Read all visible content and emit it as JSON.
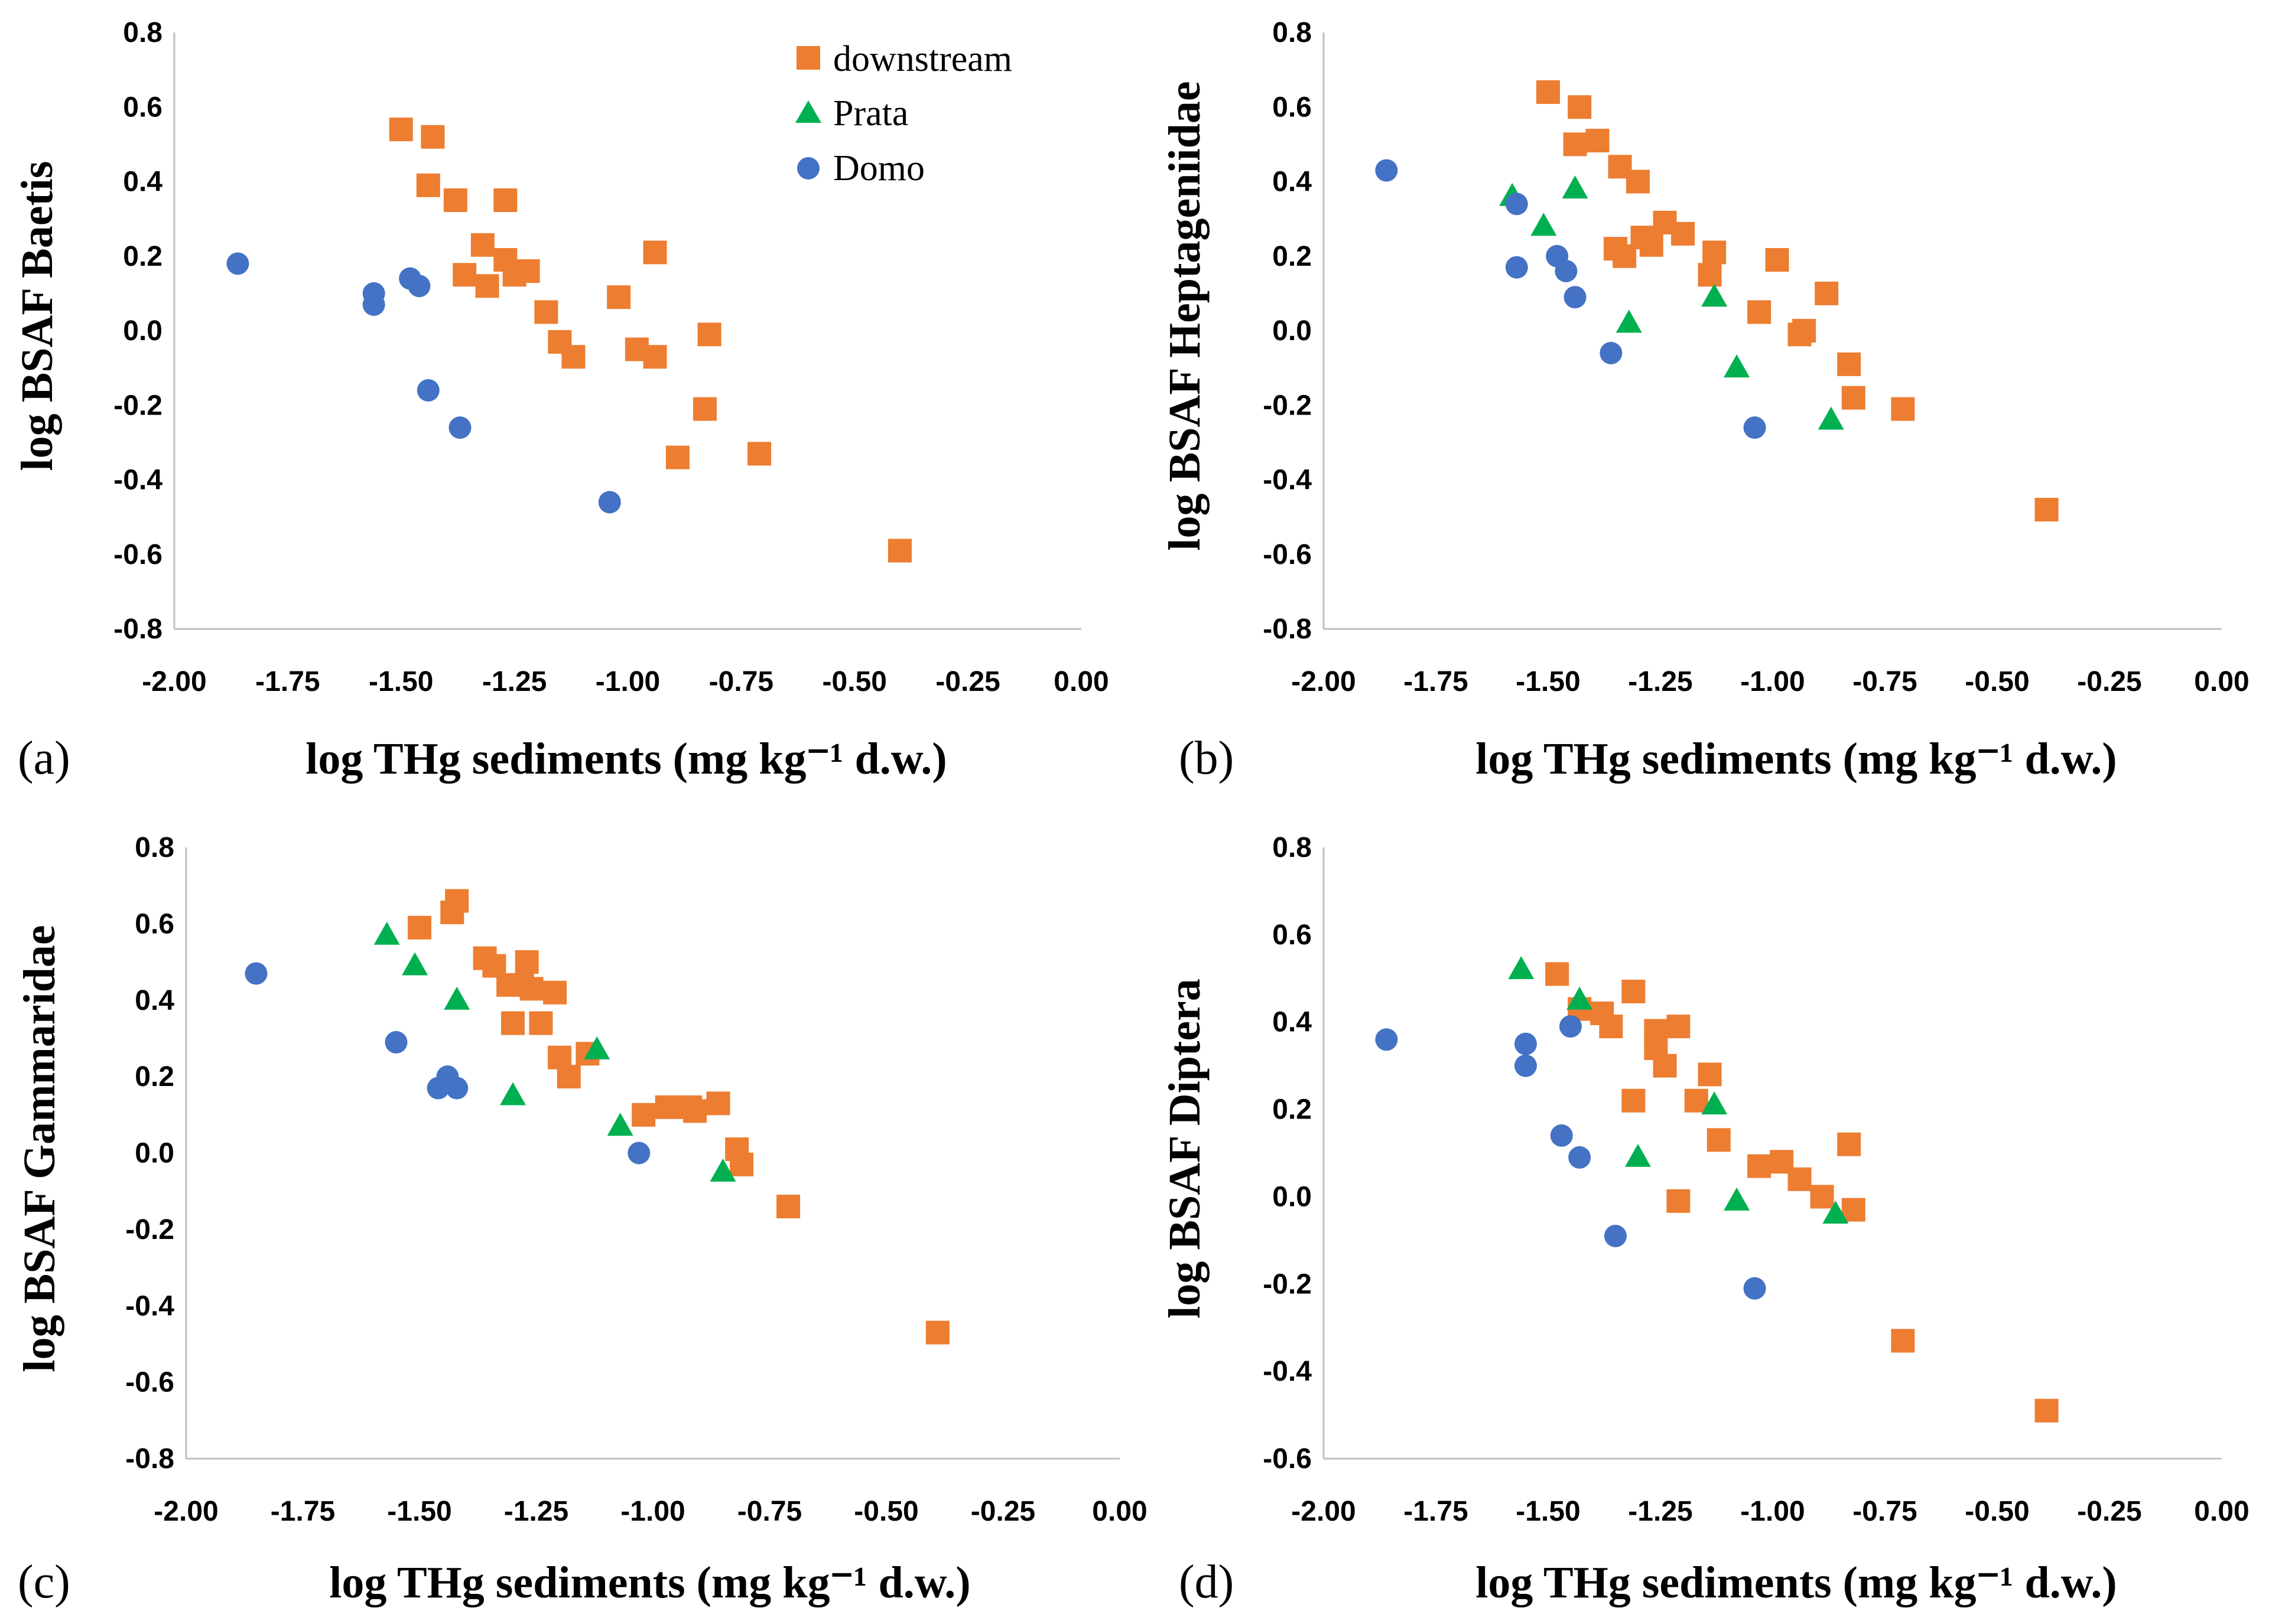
{
  "legend": [
    {
      "name": "downstream",
      "color": "#ed7d31",
      "marker": "square"
    },
    {
      "name": "Prata",
      "color": "#00b050",
      "marker": "triangle"
    },
    {
      "name": "Domo",
      "color": "#4472c4",
      "marker": "circle"
    }
  ],
  "chart_data": [
    {
      "type": "scatter",
      "panel": "(a)",
      "xlabel": "log THg sediments (mg kg⁻¹ d.w.)",
      "ylabel": "log BSAF Baetis",
      "xlim": [
        -2.0,
        0.0
      ],
      "ylim": [
        -0.8,
        0.8
      ],
      "xticks": [
        "-2.00",
        "-1.75",
        "-1.50",
        "-1.25",
        "-1.00",
        "-0.75",
        "-0.50",
        "-0.25",
        "0.00"
      ],
      "yticks": [
        "0.8",
        "0.6",
        "0.4",
        "0.2",
        "0.0",
        "-0.2",
        "-0.4",
        "-0.6",
        "-0.8"
      ],
      "series": [
        {
          "name": "downstream",
          "points": [
            [
              -1.5,
              0.54
            ],
            [
              -1.43,
              0.52
            ],
            [
              -1.44,
              0.39
            ],
            [
              -1.38,
              0.35
            ],
            [
              -1.27,
              0.35
            ],
            [
              -1.32,
              0.23
            ],
            [
              -1.36,
              0.15
            ],
            [
              -1.27,
              0.19
            ],
            [
              -1.25,
              0.15
            ],
            [
              -1.22,
              0.16
            ],
            [
              -1.31,
              0.12
            ],
            [
              -1.18,
              0.05
            ],
            [
              -1.15,
              -0.03
            ],
            [
              -1.12,
              -0.07
            ],
            [
              -1.02,
              0.09
            ],
            [
              -0.94,
              0.21
            ],
            [
              -0.98,
              -0.05
            ],
            [
              -0.94,
              -0.07
            ],
            [
              -0.82,
              -0.01
            ],
            [
              -0.83,
              -0.21
            ],
            [
              -0.89,
              -0.34
            ],
            [
              -0.71,
              -0.33
            ],
            [
              -0.4,
              -0.59
            ]
          ]
        },
        {
          "name": "Domo",
          "points": [
            [
              -1.86,
              0.18
            ],
            [
              -1.56,
              0.1
            ],
            [
              -1.56,
              0.07
            ],
            [
              -1.48,
              0.14
            ],
            [
              -1.46,
              0.12
            ],
            [
              -1.44,
              -0.16
            ],
            [
              -1.37,
              -0.26
            ],
            [
              -1.04,
              -0.46
            ]
          ]
        }
      ]
    },
    {
      "type": "scatter",
      "panel": "(b)",
      "xlabel": "log THg sediments (mg kg⁻¹ d.w.)",
      "ylabel": "log BSAF Heptageniidae",
      "xlim": [
        -2.0,
        0.0
      ],
      "ylim": [
        -0.8,
        0.8
      ],
      "xticks": [
        "-2.00",
        "-1.75",
        "-1.50",
        "-1.25",
        "-1.00",
        "-0.75",
        "-0.50",
        "-0.25",
        "0.00"
      ],
      "yticks": [
        "0.8",
        "0.6",
        "0.4",
        "0.2",
        "0.0",
        "-0.2",
        "-0.4",
        "-0.6",
        "-0.8"
      ],
      "series": [
        {
          "name": "downstream",
          "points": [
            [
              -1.5,
              0.64
            ],
            [
              -1.43,
              0.6
            ],
            [
              -1.44,
              0.5
            ],
            [
              -1.39,
              0.51
            ],
            [
              -1.34,
              0.44
            ],
            [
              -1.3,
              0.4
            ],
            [
              -1.35,
              0.22
            ],
            [
              -1.33,
              0.2
            ],
            [
              -1.29,
              0.25
            ],
            [
              -1.27,
              0.23
            ],
            [
              -1.24,
              0.29
            ],
            [
              -1.2,
              0.26
            ],
            [
              -1.14,
              0.15
            ],
            [
              -1.13,
              0.21
            ],
            [
              -0.99,
              0.19
            ],
            [
              -1.03,
              0.05
            ],
            [
              -0.94,
              -0.01
            ],
            [
              -0.93,
              0.0
            ],
            [
              -0.88,
              0.1
            ],
            [
              -0.83,
              -0.09
            ],
            [
              -0.82,
              -0.18
            ],
            [
              -0.71,
              -0.21
            ],
            [
              -0.39,
              -0.48
            ]
          ]
        },
        {
          "name": "Prata",
          "points": [
            [
              -1.58,
              0.36
            ],
            [
              -1.51,
              0.28
            ],
            [
              -1.44,
              0.38
            ],
            [
              -1.32,
              0.02
            ],
            [
              -1.13,
              0.09
            ],
            [
              -1.08,
              -0.1
            ],
            [
              -0.87,
              -0.24
            ]
          ]
        },
        {
          "name": "Domo",
          "points": [
            [
              -1.86,
              0.43
            ],
            [
              -1.57,
              0.34
            ],
            [
              -1.57,
              0.17
            ],
            [
              -1.48,
              0.2
            ],
            [
              -1.46,
              0.16
            ],
            [
              -1.44,
              0.09
            ],
            [
              -1.36,
              -0.06
            ],
            [
              -1.04,
              -0.26
            ]
          ]
        }
      ]
    },
    {
      "type": "scatter",
      "panel": "(c)",
      "xlabel": "log THg sediments (mg kg⁻¹ d.w.)",
      "ylabel": "log BSAF Gammaridae",
      "xlim": [
        -2.0,
        0.0
      ],
      "ylim": [
        -0.8,
        0.8
      ],
      "xticks": [
        "-2.00",
        "-1.75",
        "-1.50",
        "-1.25",
        "-1.00",
        "-0.75",
        "-0.50",
        "-0.25",
        "0.00"
      ],
      "yticks": [
        "0.8",
        "0.6",
        "0.4",
        "0.2",
        "0.0",
        "-0.2",
        "-0.4",
        "-0.6",
        "-0.8"
      ],
      "series": [
        {
          "name": "downstream",
          "points": [
            [
              -1.5,
              0.59
            ],
            [
              -1.43,
              0.63
            ],
            [
              -1.42,
              0.66
            ],
            [
              -1.36,
              0.51
            ],
            [
              -1.34,
              0.49
            ],
            [
              -1.31,
              0.44
            ],
            [
              -1.28,
              0.44
            ],
            [
              -1.27,
              0.5
            ],
            [
              -1.26,
              0.43
            ],
            [
              -1.21,
              0.42
            ],
            [
              -1.3,
              0.34
            ],
            [
              -1.24,
              0.34
            ],
            [
              -1.2,
              0.25
            ],
            [
              -1.18,
              0.2
            ],
            [
              -1.14,
              0.26
            ],
            [
              -1.02,
              0.1
            ],
            [
              -0.97,
              0.12
            ],
            [
              -0.92,
              0.12
            ],
            [
              -0.91,
              0.11
            ],
            [
              -0.86,
              0.13
            ],
            [
              -0.82,
              0.01
            ],
            [
              -0.81,
              -0.03
            ],
            [
              -0.71,
              -0.14
            ],
            [
              -0.39,
              -0.47
            ]
          ]
        },
        {
          "name": "Prata",
          "points": [
            [
              -1.57,
              0.57
            ],
            [
              -1.51,
              0.49
            ],
            [
              -1.42,
              0.4
            ],
            [
              -1.3,
              0.15
            ],
            [
              -1.12,
              0.27
            ],
            [
              -1.07,
              0.07
            ],
            [
              -0.85,
              -0.05
            ]
          ]
        },
        {
          "name": "Domo",
          "points": [
            [
              -1.85,
              0.47
            ],
            [
              -1.55,
              0.29
            ],
            [
              -1.46,
              0.17
            ],
            [
              -1.44,
              0.2
            ],
            [
              -1.42,
              0.17
            ],
            [
              -1.03,
              0.0
            ]
          ]
        }
      ]
    },
    {
      "type": "scatter",
      "panel": "(d)",
      "xlabel": "log THg sediments (mg kg⁻¹ d.w.)",
      "ylabel": "log BSAF Diptera",
      "xlim": [
        -2.0,
        0.0
      ],
      "ylim": [
        -0.6,
        0.8
      ],
      "xticks": [
        "-2.00",
        "-1.75",
        "-1.50",
        "-1.25",
        "-1.00",
        "-0.75",
        "-0.50",
        "-0.25",
        "0.00"
      ],
      "yticks": [
        "0.8",
        "0.6",
        "0.4",
        "0.2",
        "0.0",
        "-0.2",
        "-0.4",
        "-0.6"
      ],
      "series": [
        {
          "name": "downstream",
          "points": [
            [
              -1.48,
              0.51
            ],
            [
              -1.43,
              0.43
            ],
            [
              -1.38,
              0.42
            ],
            [
              -1.36,
              0.39
            ],
            [
              -1.31,
              0.47
            ],
            [
              -1.26,
              0.38
            ],
            [
              -1.26,
              0.34
            ],
            [
              -1.24,
              0.3
            ],
            [
              -1.21,
              0.39
            ],
            [
              -1.17,
              0.22
            ],
            [
              -1.14,
              0.28
            ],
            [
              -1.12,
              0.13
            ],
            [
              -1.31,
              0.22
            ],
            [
              -1.21,
              -0.01
            ],
            [
              -1.03,
              0.07
            ],
            [
              -0.98,
              0.08
            ],
            [
              -0.94,
              0.04
            ],
            [
              -0.89,
              0.0
            ],
            [
              -0.83,
              0.12
            ],
            [
              -0.82,
              -0.03
            ],
            [
              -0.71,
              -0.33
            ],
            [
              -0.39,
              -0.49
            ]
          ]
        },
        {
          "name": "Prata",
          "points": [
            [
              -1.56,
              0.52
            ],
            [
              -1.43,
              0.45
            ],
            [
              -1.3,
              0.09
            ],
            [
              -1.13,
              0.21
            ],
            [
              -1.08,
              -0.01
            ],
            [
              -0.86,
              -0.04
            ]
          ]
        },
        {
          "name": "Domo",
          "points": [
            [
              -1.86,
              0.36
            ],
            [
              -1.55,
              0.35
            ],
            [
              -1.55,
              0.3
            ],
            [
              -1.45,
              0.39
            ],
            [
              -1.47,
              0.14
            ],
            [
              -1.43,
              0.09
            ],
            [
              -1.35,
              -0.09
            ],
            [
              -1.04,
              -0.21
            ]
          ]
        }
      ]
    }
  ]
}
